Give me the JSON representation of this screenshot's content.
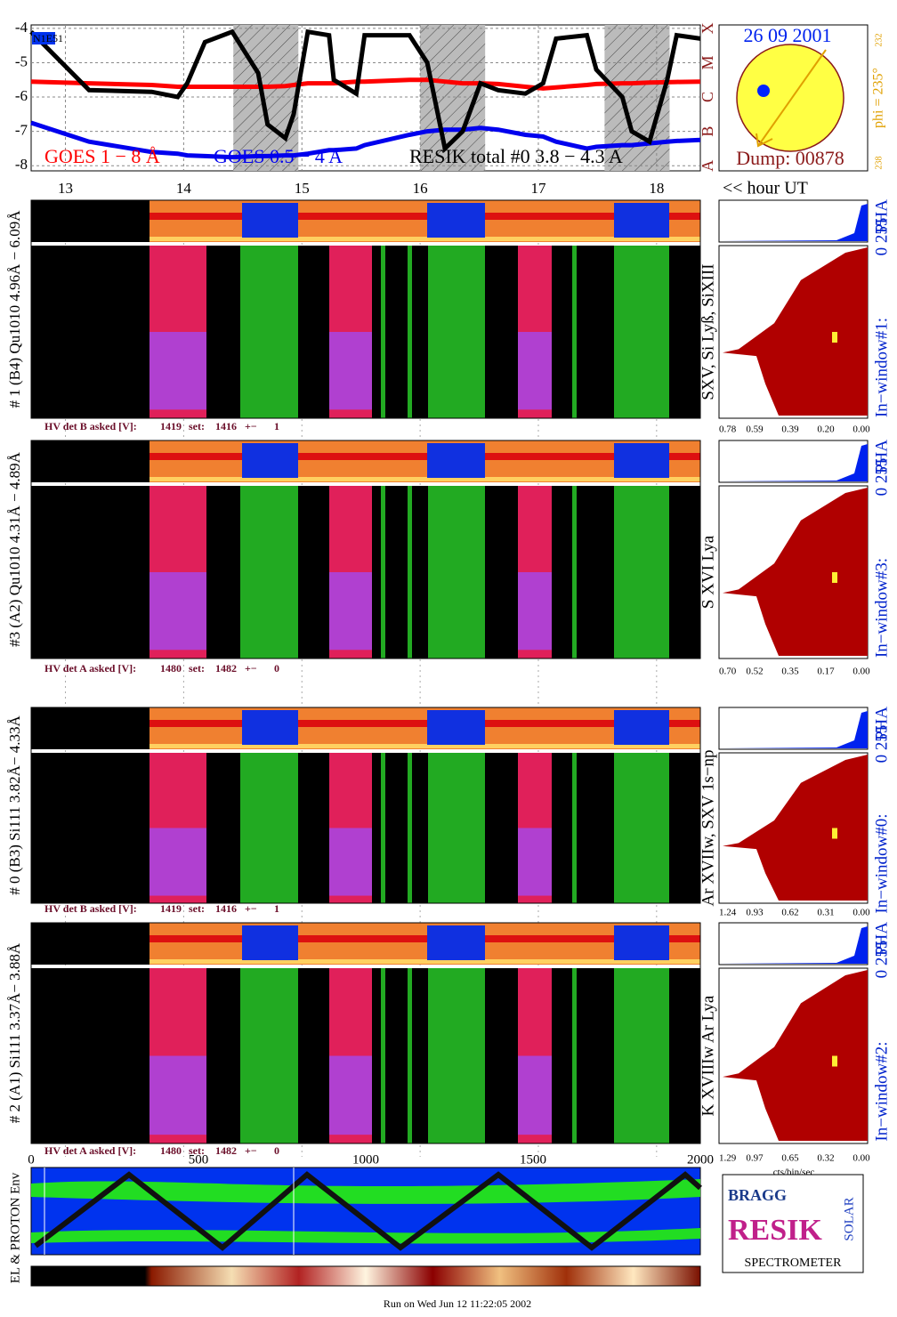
{
  "chart_data": {
    "type": "line",
    "region_label": "N1E51",
    "x": [
      12.71,
      13.2,
      13.73,
      13.95,
      14.03,
      14.18,
      14.41,
      14.63,
      14.71,
      14.86,
      14.93,
      15.05,
      15.23,
      15.27,
      15.46,
      15.53,
      15.91,
      16.06,
      16.21,
      16.36,
      16.51,
      16.66,
      16.89,
      17.04,
      17.15,
      17.41,
      17.49,
      17.71,
      17.79,
      17.94,
      18.09,
      18.17,
      18.37
    ],
    "series": [
      {
        "name": "GOES 1 − 8 Å",
        "color": "#ff0000",
        "values": [
          -5.55,
          -5.6,
          -5.65,
          -5.7,
          -5.7,
          -5.7,
          -5.7,
          -5.7,
          -5.7,
          -5.68,
          -5.65,
          -5.6,
          -5.6,
          -5.6,
          -5.55,
          -5.55,
          -5.5,
          -5.5,
          -5.55,
          -5.6,
          -5.6,
          -5.62,
          -5.7,
          -5.75,
          -5.72,
          -5.65,
          -5.62,
          -5.6,
          -5.6,
          -5.58,
          -5.57,
          -5.56,
          -5.55
        ]
      },
      {
        "name": "GOES 0.5 − 4 A",
        "color": "#0000ee",
        "values": [
          -6.75,
          -7.3,
          -7.6,
          -7.65,
          -7.7,
          -7.72,
          -7.75,
          -7.72,
          -7.72,
          -7.7,
          -7.7,
          -7.65,
          -7.55,
          -7.55,
          -7.5,
          -7.4,
          -7.1,
          -7.0,
          -6.95,
          -6.95,
          -6.9,
          -6.95,
          -7.1,
          -7.15,
          -7.3,
          -7.5,
          -7.45,
          -7.4,
          -7.4,
          -7.35,
          -7.3,
          -7.28,
          -7.25
        ]
      },
      {
        "name": "RESIK total #0  3.8 − 4.3 A",
        "color": "#000000",
        "values": [
          -4.1,
          -5.8,
          -5.85,
          -6.0,
          -5.6,
          -4.4,
          -4.1,
          -5.3,
          -6.8,
          -7.2,
          -6.5,
          -4.1,
          -4.2,
          -5.5,
          -5.9,
          -4.2,
          -4.2,
          -5.0,
          -7.5,
          -7.0,
          -5.6,
          -5.8,
          -5.9,
          -5.6,
          -4.3,
          -4.2,
          -5.2,
          -6.0,
          -7.0,
          -7.3,
          -5.5,
          -4.2,
          -4.3
        ]
      }
    ],
    "shaded": [
      [
        14.42,
        14.97
      ],
      [
        16.0,
        16.55
      ],
      [
        17.56,
        18.11
      ]
    ],
    "xlim": [
      12.71,
      18.37
    ],
    "ylim": [
      -8.15,
      -3.9
    ],
    "xticks": [
      13,
      14,
      15,
      16,
      17,
      18
    ],
    "yticks": [
      -4,
      -5,
      -6,
      -7,
      -8
    ],
    "grades": [
      "X",
      "M",
      "C",
      "B",
      "A"
    ],
    "grid": true
  },
  "sun": {
    "date": "26 09 2001",
    "phi": "phi = 235°",
    "dump": "Dump: 00878",
    "range_top": "232",
    "range_bottom": "238"
  },
  "time_axis_label": "<< hour UT",
  "detectors": [
    {
      "label": "# 1 (B4) Qu1010 4.96Å − 6.09Å",
      "lines": "SXV, Si Lyß, SiXIII",
      "window": "In−window#1:",
      "channels": "0 255",
      "pha": "PHA",
      "hv_label": "HV det B asked [V]:",
      "hv_asked": 1419,
      "hv_set_label": "set:",
      "hv_set": 1416,
      "hv_pm": "+−",
      "hv_diff": 1,
      "hist_ticks": [
        "0.78",
        "0.59",
        "0.39",
        "0.20",
        "0.00"
      ]
    },
    {
      "label": "#3 (A2) Qu1010 4.31Å − 4.89Å",
      "lines": "S XVI Lya",
      "window": "In−window#3:",
      "channels": "0 255",
      "pha": "PHA",
      "hv_label": "HV det A asked [V]:",
      "hv_asked": 1480,
      "hv_set_label": "set:",
      "hv_set": 1482,
      "hv_pm": "+−",
      "hv_diff": 0,
      "hist_ticks": [
        "0.70",
        "0.52",
        "0.35",
        "0.17",
        "0.00"
      ]
    },
    {
      "label": "# 0 (B3) Si111 3.82Å− 4.33Å",
      "lines": "Ar XVIIw, SXV 1s−np",
      "window": "In−window#0:",
      "channels": "0 255",
      "pha": "PHA",
      "hv_label": "HV det B asked [V]:",
      "hv_asked": 1419,
      "hv_set_label": "set:",
      "hv_set": 1416,
      "hv_pm": "+−",
      "hv_diff": 1,
      "hist_ticks": [
        "1.24",
        "0.93",
        "0.62",
        "0.31",
        "0.00"
      ]
    },
    {
      "label": "# 2 (A1) Si111 3.37Å− 3.88Å",
      "lines": "K XVIIIw  Ar Lya",
      "window": "In−window#2:",
      "channels": "0 255",
      "pha": "PHA",
      "hv_label": "HV det A asked [V]:",
      "hv_asked": 1480,
      "hv_set_label": "set:",
      "hv_set": 1482,
      "hv_pm": "+−",
      "hv_diff": 0,
      "hist_ticks": [
        "1.29",
        "0.97",
        "0.65",
        "0.32",
        "0.00"
      ]
    }
  ],
  "hist_unit": "cts/bin/sec",
  "proton": {
    "label": "EL & PROTON Env",
    "axis": [
      0,
      500,
      1000,
      1500,
      2000
    ]
  },
  "logo": {
    "bragg": "BRAGG",
    "resik": "RESIK",
    "solar": "SOLAR",
    "spectrometer": "SPECTROMETER"
  },
  "footer": "Run on Wed Jun 12 11:22:05 2002"
}
